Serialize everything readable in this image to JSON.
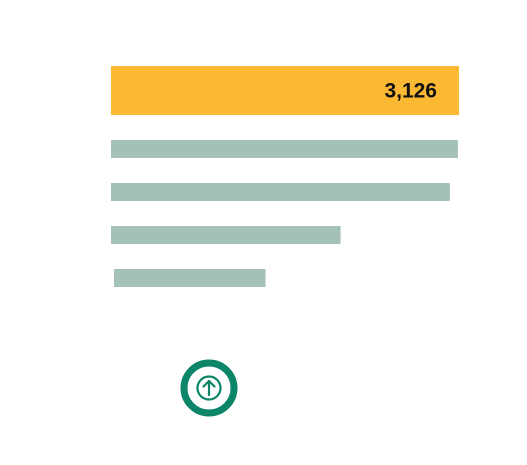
{
  "chart_data": {
    "type": "bar",
    "orientation": "horizontal",
    "categories": [
      "",
      "",
      "",
      "",
      ""
    ],
    "values": [
      3126,
      3116,
      3044,
      2062,
      1388
    ],
    "highlight_index": 0,
    "value_labels": [
      "3,126",
      "",
      "",
      "",
      ""
    ],
    "title": "",
    "xlabel": "",
    "ylabel": "",
    "xlim": [
      0,
      3126
    ],
    "grid": false,
    "legend": "none"
  },
  "colors": {
    "highlight": "#FBB832",
    "bar": "#A3C1B8",
    "label": "#111111",
    "button": "#0C8568"
  },
  "scroll_button": {
    "icon": "arrow-up-icon"
  }
}
